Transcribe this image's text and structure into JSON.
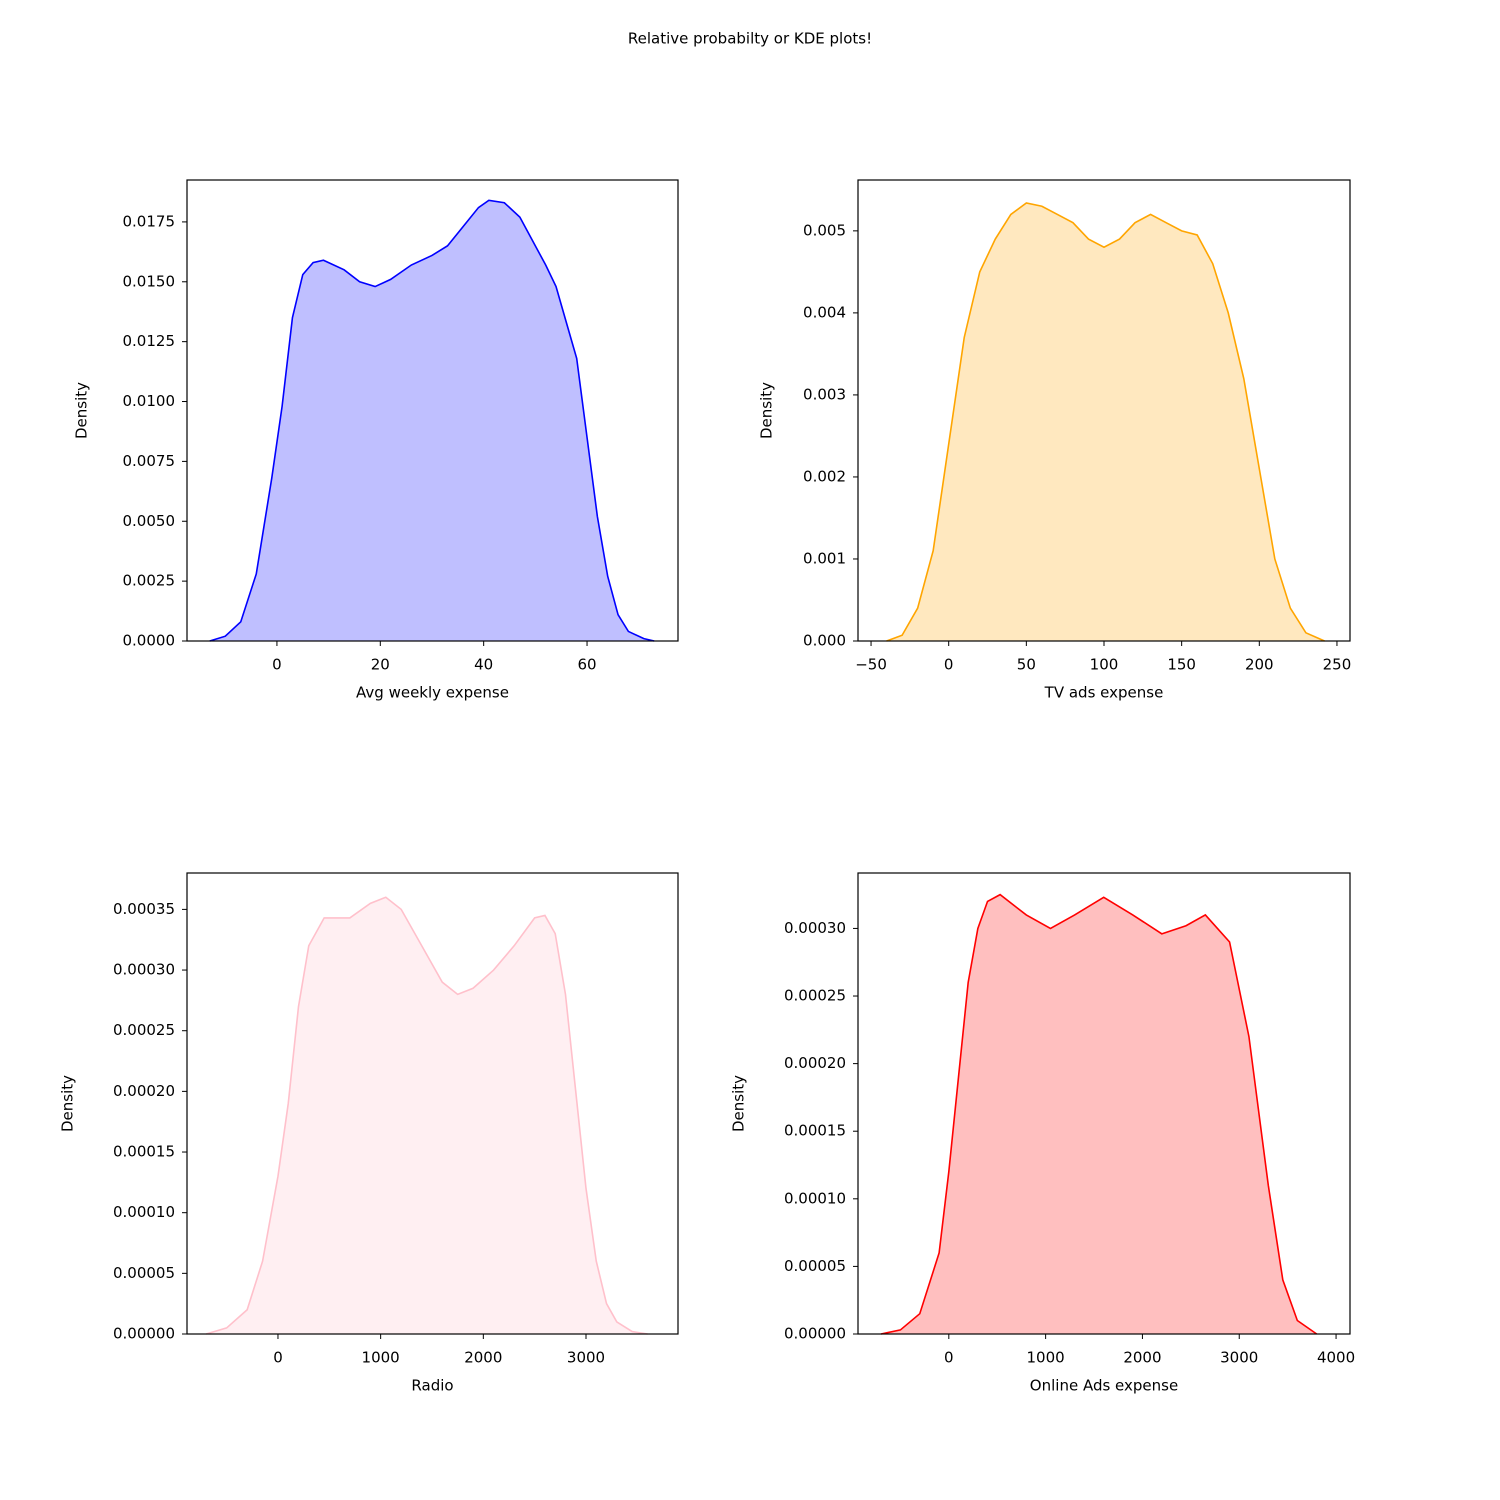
{
  "title": "Relative probabilty or KDE plots!",
  "chart_data": [
    {
      "type": "kde",
      "xlabel": "Avg weekly expense",
      "ylabel": "Density",
      "color": "#0000ff",
      "x": [
        -13,
        -10,
        -7,
        -4,
        -1,
        1,
        3,
        5,
        7,
        9,
        13,
        16,
        19,
        22,
        26,
        30,
        33,
        36,
        39,
        41,
        44,
        47,
        50,
        52,
        54,
        56,
        58,
        60,
        62,
        64,
        66,
        68,
        71,
        73
      ],
      "values": [
        0,
        0.0002,
        0.0008,
        0.0028,
        0.0068,
        0.0098,
        0.0135,
        0.0153,
        0.0158,
        0.0159,
        0.0155,
        0.015,
        0.0148,
        0.0151,
        0.0157,
        0.0161,
        0.0165,
        0.0173,
        0.0181,
        0.0184,
        0.0183,
        0.0177,
        0.0165,
        0.0157,
        0.0148,
        0.0133,
        0.0118,
        0.0085,
        0.0052,
        0.0027,
        0.0011,
        0.0004,
        0.0001,
        0
      ],
      "xlim": [
        -17.4,
        77.6
      ],
      "ylim": [
        0,
        0.01925
      ],
      "xticks": [
        0,
        20,
        40,
        60
      ],
      "yticks": [
        {
          "value": 0,
          "label": "0.0000"
        },
        0.0025,
        {
          "value": 0.005,
          "label": "0.0050"
        },
        0.0075,
        {
          "value": 0.01,
          "label": "0.0100"
        },
        0.0125,
        {
          "value": 0.015,
          "label": "0.0150"
        },
        0.0175
      ]
    },
    {
      "type": "kde",
      "xlabel": "TV ads expense",
      "ylabel": "Density",
      "color": "#ffa500",
      "x": [
        -40,
        -30,
        -20,
        -10,
        0,
        10,
        20,
        30,
        40,
        50,
        60,
        70,
        80,
        90,
        100,
        110,
        120,
        130,
        140,
        150,
        160,
        170,
        180,
        190,
        200,
        210,
        220,
        230,
        242
      ],
      "values": [
        0,
        7e-05,
        0.0004,
        0.0011,
        0.0024,
        0.0037,
        0.0045,
        0.0049,
        0.0052,
        0.00534,
        0.0053,
        0.0052,
        0.0051,
        0.0049,
        0.0048,
        0.0049,
        0.0051,
        0.0052,
        0.0051,
        0.005,
        0.00495,
        0.0046,
        0.004,
        0.0032,
        0.0021,
        0.001,
        0.0004,
        0.0001,
        0
      ],
      "xlim": [
        -58.4,
        258.4
      ],
      "ylim": [
        0,
        0.00562
      ],
      "xticks": [
        {
          "value": -50,
          "label": "−50"
        },
        0,
        50,
        100,
        150,
        200,
        250
      ],
      "yticks": [
        {
          "value": 0,
          "label": "0.000"
        },
        0.001,
        0.002,
        0.003,
        0.004,
        0.005
      ]
    },
    {
      "type": "kde",
      "xlabel": "Radio",
      "ylabel": "Density",
      "color": "#ffc0cb",
      "x": [
        -700,
        -500,
        -300,
        -150,
        0,
        100,
        200,
        300,
        450,
        700,
        900,
        1050,
        1200,
        1400,
        1600,
        1750,
        1900,
        2100,
        2300,
        2500,
        2600,
        2700,
        2800,
        2900,
        3000,
        3100,
        3200,
        3300,
        3450,
        3600
      ],
      "values": [
        0,
        5e-06,
        2e-05,
        6e-05,
        0.00013,
        0.00019,
        0.00027,
        0.00032,
        0.000343,
        0.000343,
        0.000355,
        0.00036,
        0.00035,
        0.00032,
        0.00029,
        0.00028,
        0.000285,
        0.0003,
        0.00032,
        0.000343,
        0.000345,
        0.00033,
        0.00028,
        0.0002,
        0.00012,
        6e-05,
        2.5e-05,
        1e-05,
        2e-06,
        0
      ],
      "xlim": [
        -886,
        3896
      ],
      "ylim": [
        0,
        0.00038
      ],
      "xticks": [
        0,
        1000,
        2000,
        3000
      ],
      "yticks": [
        {
          "value": 0,
          "label": "0.00000"
        },
        5e-05,
        {
          "value": 0.0001,
          "label": "0.00010"
        },
        0.00015,
        {
          "value": 0.0002,
          "label": "0.00020"
        },
        0.00025,
        {
          "value": 0.0003,
          "label": "0.00030"
        },
        0.00035
      ]
    },
    {
      "type": "kde",
      "xlabel": "Online Ads expense",
      "ylabel": "Density",
      "color": "#ff0000",
      "x": [
        -700,
        -500,
        -300,
        -100,
        0,
        100,
        200,
        300,
        400,
        530,
        800,
        1050,
        1300,
        1600,
        1900,
        2200,
        2450,
        2650,
        2900,
        3100,
        3300,
        3450,
        3600,
        3800
      ],
      "values": [
        0,
        3e-06,
        1.5e-05,
        6e-05,
        0.00012,
        0.00019,
        0.00026,
        0.0003,
        0.00032,
        0.000325,
        0.00031,
        0.0003,
        0.00031,
        0.000323,
        0.00031,
        0.000296,
        0.000302,
        0.00031,
        0.00029,
        0.00022,
        0.00011,
        4e-05,
        1e-05,
        0
      ],
      "xlim": [
        -938,
        4144
      ],
      "ylim": [
        0,
        0.000341
      ],
      "xticks": [
        0,
        1000,
        2000,
        3000,
        4000
      ],
      "yticks": [
        {
          "value": 0,
          "label": "0.00000"
        },
        5e-05,
        {
          "value": 0.0001,
          "label": "0.00010"
        },
        0.00015,
        {
          "value": 0.0002,
          "label": "0.00020"
        },
        0.00025,
        {
          "value": 0.0003,
          "label": "0.00030"
        }
      ]
    }
  ]
}
